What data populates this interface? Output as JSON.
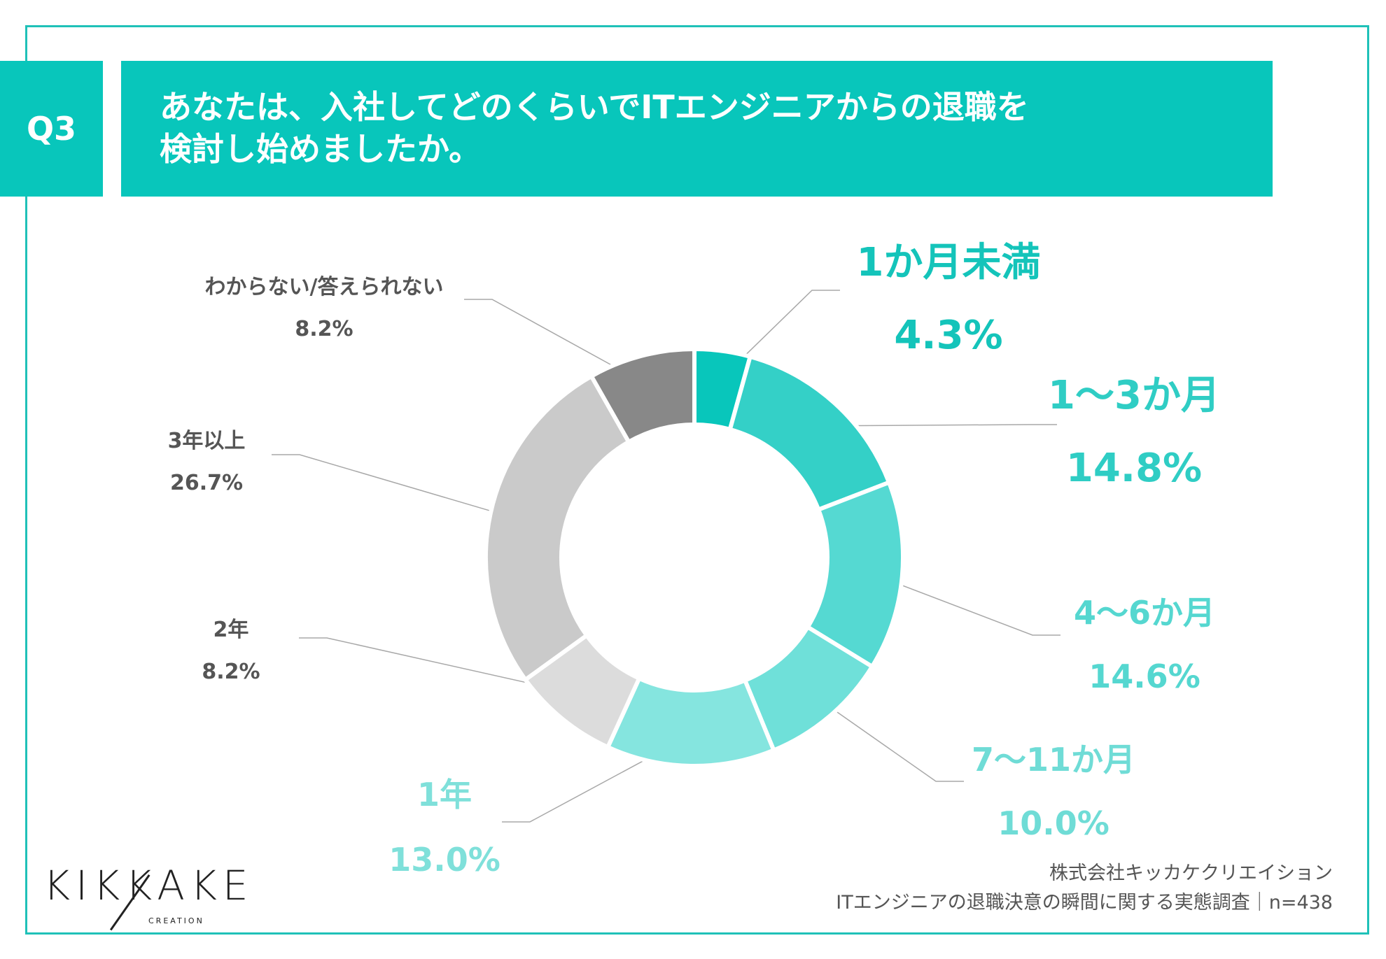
{
  "header": {
    "badge": "Q3",
    "question_line1": "あなたは、入社してどのくらいでITエンジニアからの退職を",
    "question_line2": "検討し始めましたか。"
  },
  "chart_data": {
    "type": "pie",
    "subtype": "donut",
    "slices": [
      {
        "label": "1か月未満",
        "value": 4.3,
        "value_text": "4.3%",
        "color": "#08c6bb"
      },
      {
        "label": "1〜3か月",
        "value": 14.8,
        "value_text": "14.8%",
        "color": "#34d0c7"
      },
      {
        "label": "4〜6か月",
        "value": 14.6,
        "value_text": "14.6%",
        "color": "#55d9d2"
      },
      {
        "label": "7〜11か月",
        "value": 10.0,
        "value_text": "10.0%",
        "color": "#6fe0d9"
      },
      {
        "label": "1年",
        "value": 13.0,
        "value_text": "13.0%",
        "color": "#85e5df"
      },
      {
        "label": "2年",
        "value": 8.2,
        "value_text": "8.2%",
        "color": "#dcdcdc"
      },
      {
        "label": "3年以上",
        "value": 26.7,
        "value_text": "26.7%",
        "color": "#cacaca"
      },
      {
        "label": "わからない/答えられない",
        "value": 8.2,
        "value_text": "8.2%",
        "color": "#888888"
      }
    ],
    "label_colors": {
      "1か月未満": "#14c4ba",
      "1〜3か月": "#2fcdc4",
      "4〜6か月": "#55d7d0",
      "7〜11か月": "#6fdcd6",
      "1年": "#7fe0da",
      "2年": "#555555",
      "3年以上": "#555555",
      "わからない/答えられない": "#555555"
    }
  },
  "logo": {
    "word": "KIKKAKE",
    "sub": "CREATION"
  },
  "source": {
    "company": "株式会社キッカケクリエイション",
    "survey": "ITエンジニアの退職決意の瞬間に関する実態調査｜n=438"
  }
}
